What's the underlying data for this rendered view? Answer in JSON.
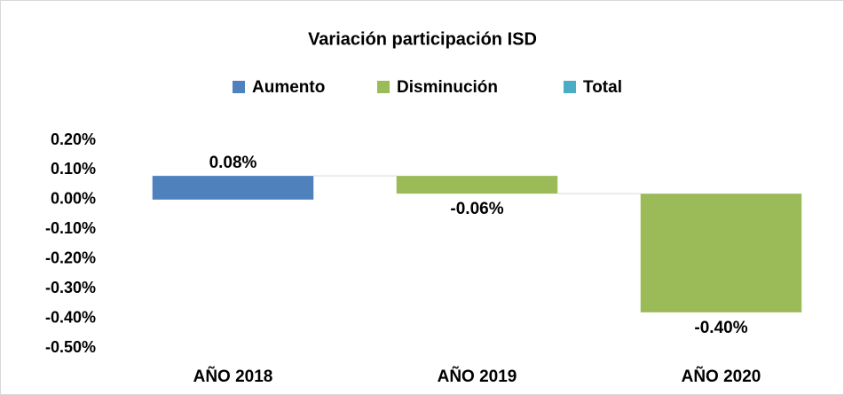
{
  "chart_data": {
    "type": "waterfall",
    "title": "Variación participación ISD",
    "legend": [
      {
        "name": "Aumento",
        "color": "#4f81bd"
      },
      {
        "name": "Disminución",
        "color": "#9bbb59"
      },
      {
        "name": "Total",
        "color": "#4bacc6"
      }
    ],
    "categories": [
      "AÑO 2018",
      "AÑO 2019",
      "AÑO 2020"
    ],
    "values": [
      0.08,
      -0.06,
      -0.4
    ],
    "value_labels": [
      "0.08%",
      "-0.06%",
      "-0.40%"
    ],
    "ylim": [
      -0.5,
      0.2
    ],
    "yticks": [
      {
        "value": 0.2,
        "label": "0.20%"
      },
      {
        "value": 0.1,
        "label": "0.10%"
      },
      {
        "value": 0,
        "label": "0.00%"
      },
      {
        "value": -0.1,
        "label": "-0.10%"
      },
      {
        "value": -0.2,
        "label": "-0.20%"
      },
      {
        "value": -0.3,
        "label": "-0.30%"
      },
      {
        "value": -0.4,
        "label": "-0.40%"
      },
      {
        "value": -0.5,
        "label": "-0.50%"
      }
    ],
    "grid": false
  }
}
